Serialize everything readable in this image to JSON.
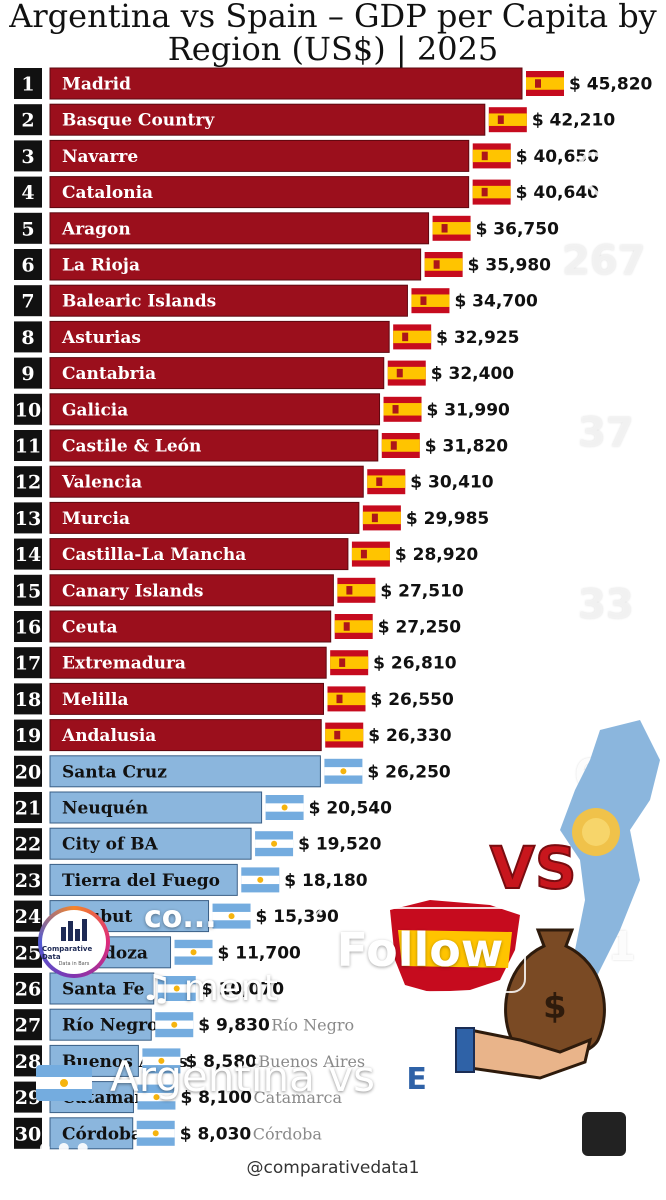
{
  "title_line1": "Argentina vs Spain – GDP per Capita by",
  "title_line2": "Region (US$) | 2025",
  "watermark": "@comparativedata1",
  "colors": {
    "spain": "#9b0f1c",
    "argentina": "#8bb6dd",
    "rank_bg": "#111111"
  },
  "chart_data": {
    "type": "bar",
    "orientation": "horizontal",
    "title": "Argentina vs Spain – GDP per Capita by Region (US$) | 2025",
    "xlim": [
      0,
      45820
    ],
    "categories": [
      "Madrid",
      "Basque Country",
      "Navarre",
      "Catalonia",
      "Aragon",
      "La Rioja",
      "Balearic Islands",
      "Asturias",
      "Cantabria",
      "Galicia",
      "Castile & León",
      "Valencia",
      "Murcia",
      "Castilla-La Mancha",
      "Canary Islands",
      "Ceuta",
      "Extremadura",
      "Melilla",
      "Andalusia",
      "Santa Cruz",
      "Neuquén",
      "City of BA",
      "Tierra del Fuego",
      "Chubut",
      "Mendoza",
      "Santa Fe",
      "Río Negro",
      "Buenos Aires",
      "Catamarca",
      "Córdoba"
    ],
    "ranks": [
      "1",
      "2",
      "3",
      "4",
      "5",
      "6",
      "7",
      "8",
      "9",
      "10",
      "11",
      "12",
      "13",
      "14",
      "15",
      "16",
      "17",
      "18",
      "19",
      "20",
      "21",
      "22",
      "23",
      "24",
      "25",
      "26",
      "27",
      "28",
      "29",
      "30"
    ],
    "values": [
      45820,
      42210,
      40650,
      40640,
      36750,
      35980,
      34700,
      32925,
      32400,
      31990,
      31820,
      30410,
      29985,
      28920,
      27510,
      27250,
      26810,
      26550,
      26330,
      26250,
      20540,
      19520,
      18180,
      15390,
      11700,
      10070,
      9830,
      8580,
      8100,
      8030
    ],
    "value_labels": [
      "$ 45,820",
      "$ 42,210",
      "$ 40,650",
      "$ 40,640",
      "$ 36,750",
      "$ 35,980",
      "$ 34,700",
      "$ 32,925",
      "$ 32,400",
      "$ 31,990",
      "$ 31,820",
      "$ 30,410",
      "$ 29,985",
      "$ 28,920",
      "$ 27,510",
      "$ 27,250",
      "$ 26,810",
      "$ 26,550",
      "$ 26,330",
      "$ 26,250",
      "$ 20,540",
      "$ 19,520",
      "$ 18,180",
      "$ 15,390",
      "$ 11,700",
      "$ 10,070",
      "$ 9,830",
      "$ 8,580",
      "$ 8,100",
      "$ 8,030"
    ],
    "country": [
      "Spain",
      "Spain",
      "Spain",
      "Spain",
      "Spain",
      "Spain",
      "Spain",
      "Spain",
      "Spain",
      "Spain",
      "Spain",
      "Spain",
      "Spain",
      "Spain",
      "Spain",
      "Spain",
      "Spain",
      "Spain",
      "Spain",
      "Argentina",
      "Argentina",
      "Argentina",
      "Argentina",
      "Argentina",
      "Argentina",
      "Argentina",
      "Argentina",
      "Argentina",
      "Argentina",
      "Argentina"
    ],
    "ghost_city_labels": {
      "27": "Río Negro",
      "28": "Buenos Aires",
      "29": "Catamarca",
      "30": "Córdoba"
    }
  },
  "overlay": {
    "likes": "267",
    "comments": "37",
    "reposts": "33",
    "shares": "62",
    "saves": "81",
    "handle": "co...",
    "audio": "♫ ment",
    "follow_label": "Follow",
    "caption": "Argentina vs",
    "caption_tail": "E",
    "more_dots": "•••",
    "avatar_text": "Comparative Data",
    "avatar_subtext": "Data in Bars",
    "vs_text": "VS"
  }
}
